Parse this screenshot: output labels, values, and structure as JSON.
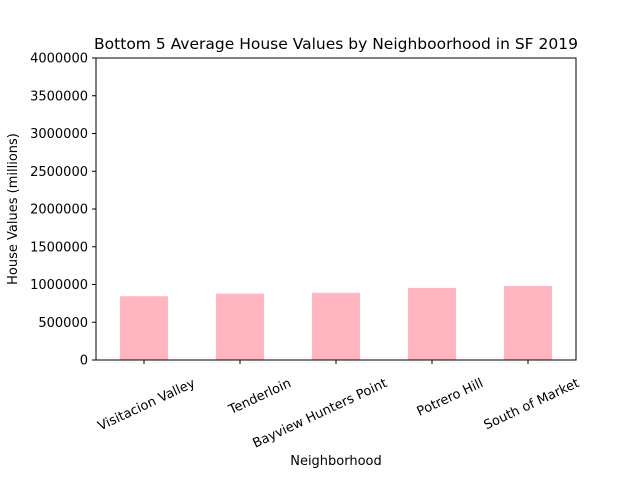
{
  "chart_data": {
    "type": "bar",
    "title": "Bottom 5 Average House Values by Neighboorhood in SF 2019",
    "xlabel": "Neighborhood",
    "ylabel": "House Values (millions)",
    "categories": [
      "Visitacion Valley",
      "Tenderloin",
      "Bayview Hunters Point",
      "Potrero Hill",
      "South of Market"
    ],
    "values": [
      845000,
      880000,
      890000,
      955000,
      980000
    ],
    "ylim": [
      0,
      4000000
    ],
    "yticks": [
      "0",
      "500000",
      "1000000",
      "1500000",
      "2000000",
      "2500000",
      "3000000",
      "3500000",
      "4000000"
    ],
    "bar_color": "#ffb6c1",
    "grid": false,
    "legend": false
  }
}
